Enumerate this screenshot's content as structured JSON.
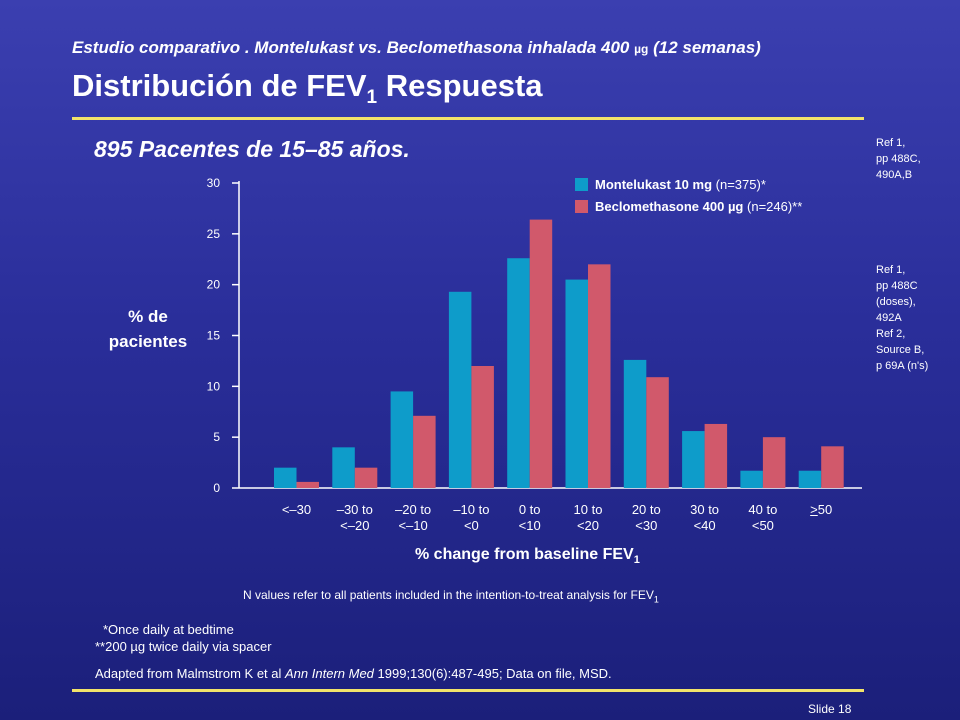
{
  "header": {
    "subtitle_main": "Estudio comparativo . Montelukast vs. Beclomethasona inhalada 400",
    "subtitle_unit": "µg",
    "subtitle_end": "(12 semanas)",
    "title_main": "Distribución de FEV",
    "title_sub": "1",
    "title_end": "Respuesta",
    "patients": "895 Pacentes de 15–85 años."
  },
  "references": {
    "ref1": [
      "Ref 1,",
      "pp 488C,",
      "490A,B"
    ],
    "ref2": [
      "Ref 1,",
      "pp 488C",
      "(doses),",
      "492A",
      "Ref 2,",
      "Source B,",
      "p 69A (n's)"
    ]
  },
  "chart_data": {
    "type": "bar",
    "title": "",
    "ylabel": "% de pacientes",
    "xlabel_main": "% change from baseline FEV",
    "xlabel_sub": "1",
    "ylim": [
      0,
      30
    ],
    "yticks": [
      0,
      5,
      10,
      15,
      20,
      25,
      30
    ],
    "categories": [
      [
        "<–30"
      ],
      [
        "–30 to",
        "<–20"
      ],
      [
        "–20 to",
        "<–10"
      ],
      [
        "–10 to",
        "<0"
      ],
      [
        "0 to",
        "<10"
      ],
      [
        "10 to",
        "<20"
      ],
      [
        "20 to",
        "<30"
      ],
      [
        "30 to",
        "<40"
      ],
      [
        "40 to",
        "<50"
      ],
      [
        "≥50"
      ]
    ],
    "series": [
      {
        "name": "Montelukast  10 mg",
        "n_label": "(n=375)*",
        "color": "#0e9cca",
        "values": [
          2.0,
          4.0,
          9.5,
          19.3,
          22.6,
          20.5,
          12.6,
          5.6,
          1.7,
          1.7
        ]
      },
      {
        "name": "Beclomethasone  400 µg",
        "n_label": "(n=246)**",
        "color": "#d1596b",
        "values": [
          0.6,
          2.0,
          7.1,
          12.0,
          26.4,
          22.0,
          10.9,
          6.3,
          5.0,
          4.1
        ]
      }
    ],
    "grid": false,
    "legend": "top-right"
  },
  "notes": {
    "n_values_main": "N values refer to all patients included in the intention-to-treat analysis for FEV",
    "n_values_sub": "1",
    "footnote1": "*Once daily at bedtime",
    "footnote2": "**200 µg twice daily via spacer",
    "source_pre": "Adapted from Malmstrom K et al ",
    "source_journal": "Ann Intern Med",
    "source_post": " 1999;130(6):487-495; Data on file, MSD.",
    "slide": "Slide 18"
  }
}
